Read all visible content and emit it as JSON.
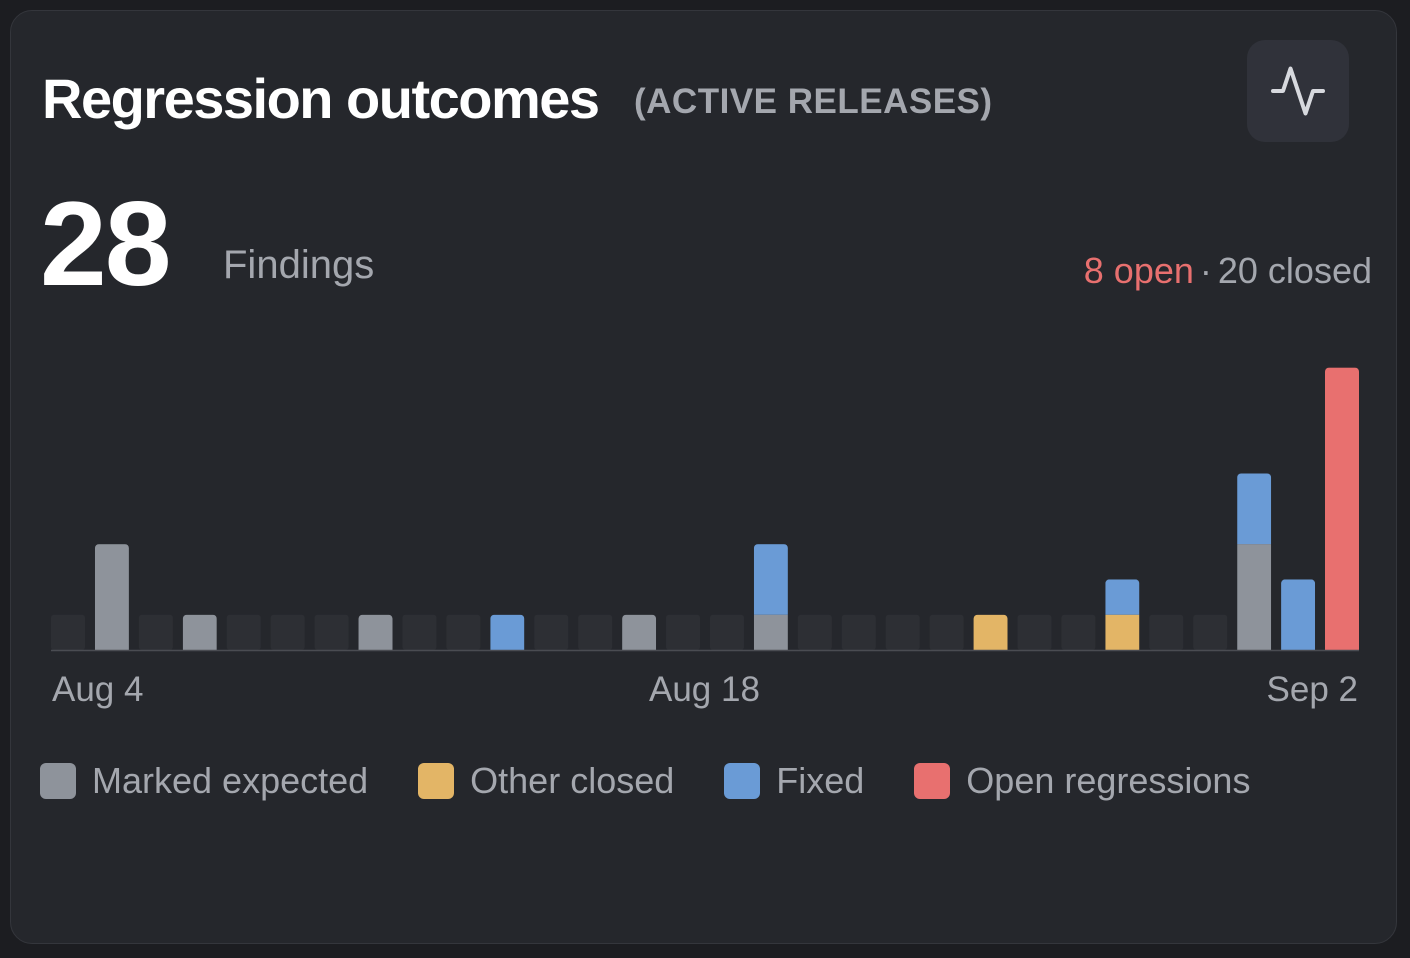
{
  "header": {
    "title": "Regression outcomes",
    "subtitle": "(ACTIVE RELEASES)",
    "icon": "activity-pulse-icon"
  },
  "summary": {
    "total": "28",
    "total_label": "Findings",
    "open_text": "8 open",
    "separator": "·",
    "closed_text": "20 closed"
  },
  "legend": [
    {
      "label": "Marked expected",
      "color": "#8e939b"
    },
    {
      "label": "Other closed",
      "color": "#e3b566"
    },
    {
      "label": "Fixed",
      "color": "#6a9bd6"
    },
    {
      "label": "Open regressions",
      "color": "#e8706f"
    }
  ],
  "axis_labels": {
    "start": "Aug 4",
    "middle": "Aug 18",
    "end": "Sep 2"
  },
  "colors": {
    "empty_slot": "#2d2f34",
    "baseline": "#4a4c52",
    "marked_expected": "#8e939b",
    "other_closed": "#e3b566",
    "fixed": "#6a9bd6",
    "open": "#e8706f"
  },
  "chart_data": {
    "type": "bar",
    "stacked": true,
    "num_days": 30,
    "x_first": "Aug 4",
    "x_last": "Sep 2",
    "series": [
      {
        "name": "Marked expected",
        "key": "marked_expected",
        "values": [
          0,
          3,
          0,
          1,
          0,
          0,
          0,
          1,
          0,
          0,
          0,
          0,
          0,
          1,
          0,
          0,
          1,
          0,
          0,
          0,
          0,
          0,
          0,
          0,
          0,
          0,
          0,
          3,
          0,
          0
        ]
      },
      {
        "name": "Other closed",
        "key": "other_closed",
        "values": [
          0,
          0,
          0,
          0,
          0,
          0,
          0,
          0,
          0,
          0,
          0,
          0,
          0,
          0,
          0,
          0,
          0,
          0,
          0,
          0,
          0,
          1,
          0,
          0,
          1,
          0,
          0,
          0,
          0,
          0
        ]
      },
      {
        "name": "Fixed",
        "key": "fixed",
        "values": [
          0,
          0,
          0,
          0,
          0,
          0,
          0,
          0,
          0,
          0,
          1,
          0,
          0,
          0,
          0,
          0,
          2,
          0,
          0,
          0,
          0,
          0,
          0,
          0,
          1,
          0,
          0,
          2,
          2,
          0
        ]
      },
      {
        "name": "Open regressions",
        "key": "open",
        "values": [
          0,
          0,
          0,
          0,
          0,
          0,
          0,
          0,
          0,
          0,
          0,
          0,
          0,
          0,
          0,
          0,
          0,
          0,
          0,
          0,
          0,
          0,
          0,
          0,
          0,
          0,
          0,
          0,
          0,
          8
        ]
      }
    ]
  }
}
